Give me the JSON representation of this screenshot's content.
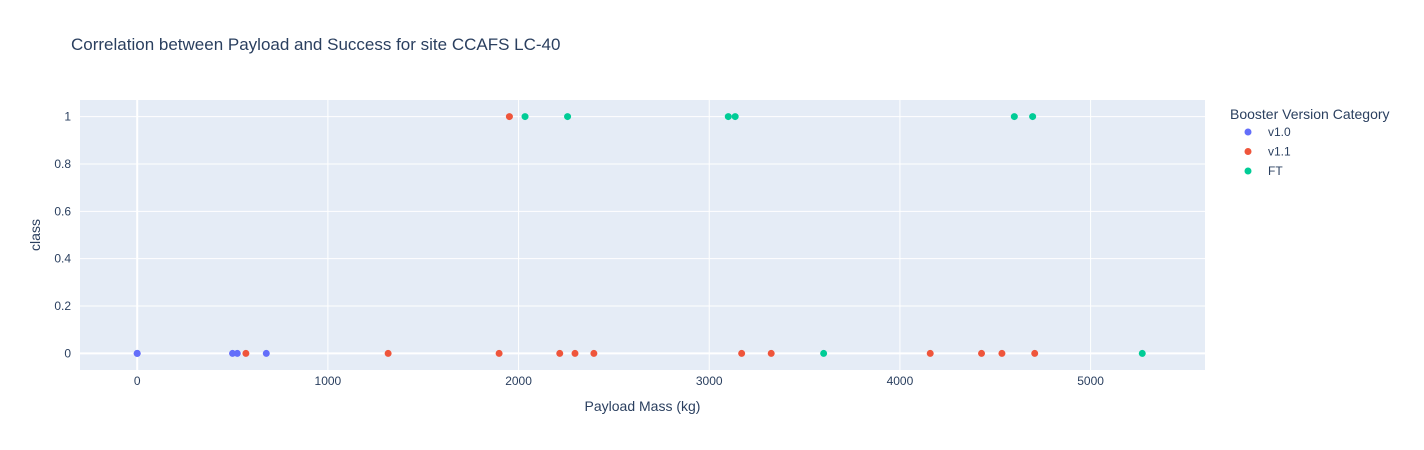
{
  "chart_data": {
    "type": "scatter",
    "title": "Correlation between Payload and Success for site CCAFS LC-40",
    "xlabel": "Payload Mass (kg)",
    "ylabel": "class",
    "xlim": [
      -300,
      5600
    ],
    "ylim": [
      -0.07,
      1.07
    ],
    "x_ticks": [
      0,
      1000,
      2000,
      3000,
      4000,
      5000
    ],
    "y_ticks": [
      0,
      0.2,
      0.4,
      0.6,
      0.8,
      1
    ],
    "y_tick_labels": [
      "0",
      "0.2",
      "0.4",
      "0.6",
      "0.8",
      "1"
    ],
    "background": "#e5ecf6",
    "grid": true,
    "legend_title": "Booster Version Category",
    "legend_position": "right",
    "series": [
      {
        "name": "v1.0",
        "color": "#636efa",
        "x": [
          0,
          0,
          500,
          525,
          677
        ],
        "y": [
          0,
          0,
          0,
          0,
          0
        ]
      },
      {
        "name": "v1.1",
        "color": "#ef553b",
        "x": [
          570,
          1316,
          1898,
          1952,
          2216,
          2296,
          2395,
          3170,
          3325,
          4159,
          4428,
          4535,
          4707
        ],
        "y": [
          0,
          0,
          0,
          1,
          0,
          0,
          0,
          0,
          0,
          0,
          0,
          0,
          0
        ]
      },
      {
        "name": "FT",
        "color": "#00cc96",
        "x": [
          2034,
          2257,
          3100,
          3136,
          3600,
          4600,
          4696,
          5271
        ],
        "y": [
          1,
          1,
          1,
          1,
          0,
          1,
          1,
          0
        ]
      }
    ]
  }
}
